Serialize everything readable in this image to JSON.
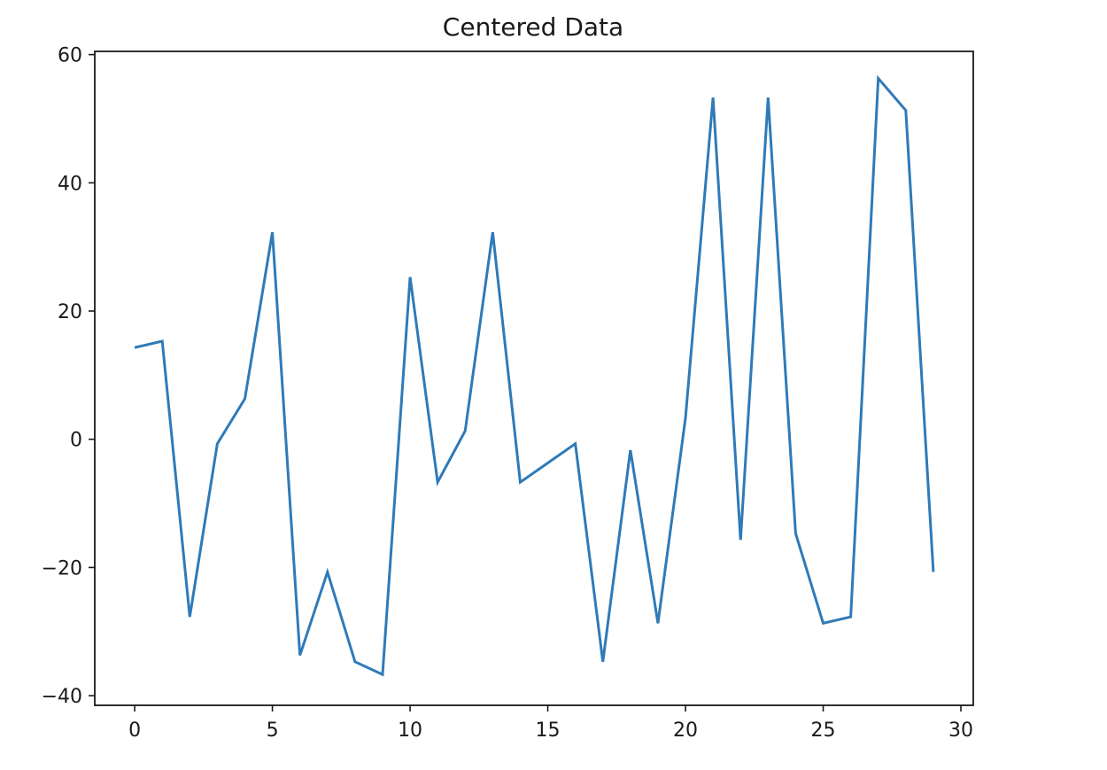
{
  "chart_data": {
    "type": "line",
    "title": "Centered Data",
    "xlabel": "",
    "ylabel": "",
    "xlim": [
      -1.45,
      30.45
    ],
    "ylim": [
      -41.5,
      60.5
    ],
    "xticks": [
      0,
      5,
      10,
      15,
      20,
      25,
      30
    ],
    "xtick_labels": [
      "0",
      "5",
      "10",
      "15",
      "20",
      "25",
      "30"
    ],
    "yticks": [
      -40,
      -20,
      0,
      20,
      40,
      60
    ],
    "ytick_labels": [
      "−40",
      "−20",
      "0",
      "20",
      "40",
      "60"
    ],
    "grid": false,
    "line_color": "#2f7ab8",
    "series": [
      {
        "x": [
          0,
          1,
          2,
          3,
          4,
          5,
          6,
          7,
          8,
          9,
          10,
          11,
          12,
          13,
          14,
          15,
          16,
          17,
          18,
          19,
          20,
          21,
          22,
          23,
          24,
          25,
          26,
          27,
          28,
          29
        ],
        "values": [
          14.3,
          15.3,
          -27.7,
          -0.7,
          6.3,
          32.3,
          -33.7,
          -20.7,
          -34.7,
          -36.7,
          25.3,
          -6.7,
          1.3,
          32.3,
          -6.7,
          -3.7,
          -0.7,
          -34.7,
          -1.7,
          -28.7,
          3.3,
          53.3,
          -15.7,
          53.3,
          -14.7,
          -28.7,
          -27.7,
          56.3,
          51.3,
          -20.7
        ]
      }
    ]
  }
}
